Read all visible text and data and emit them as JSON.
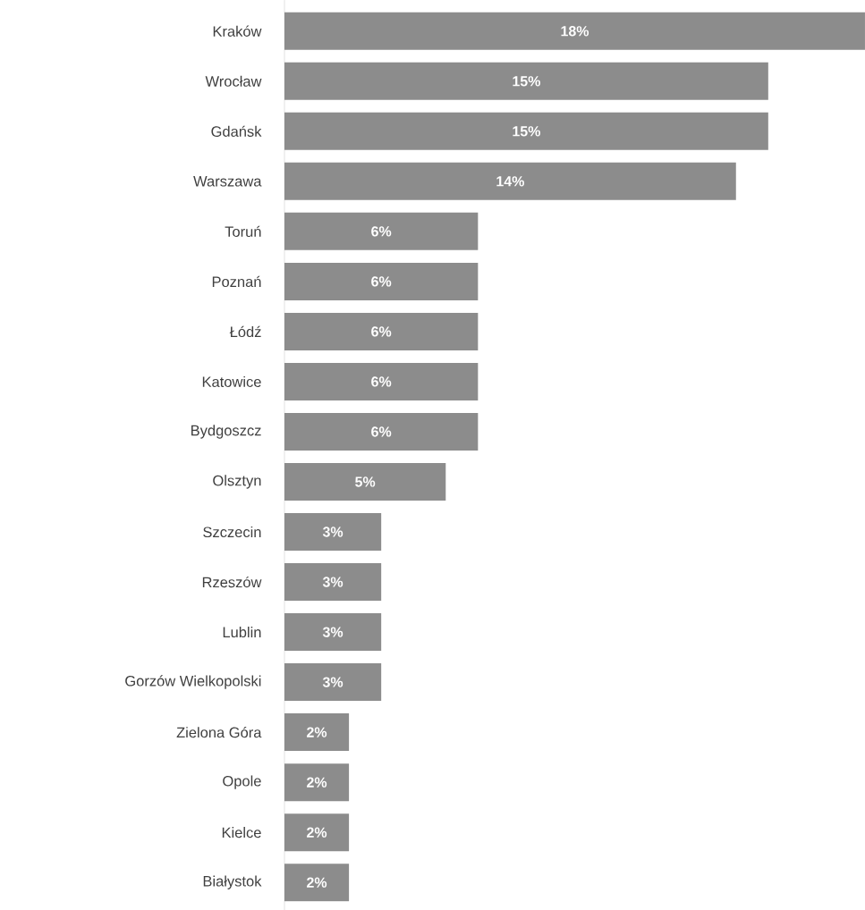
{
  "chart_data": {
    "type": "bar",
    "orientation": "horizontal",
    "categories": [
      "Kraków",
      "Wrocław",
      "Gdańsk",
      "Warszawa",
      "Toruń",
      "Poznań",
      "Łódź",
      "Katowice",
      "Bydgoszcz",
      "Olsztyn",
      "Szczecin",
      "Rzeszów",
      "Lublin",
      "Gorzów Wielkopolski",
      "Zielona Góra",
      "Opole",
      "Kielce",
      "Białystok"
    ],
    "values": [
      18,
      15,
      15,
      14,
      6,
      6,
      6,
      6,
      6,
      5,
      3,
      3,
      3,
      3,
      2,
      2,
      2,
      2
    ],
    "value_labels": [
      "18%",
      "15%",
      "15%",
      "14%",
      "6%",
      "6%",
      "6%",
      "6%",
      "6%",
      "5%",
      "3%",
      "3%",
      "3%",
      "3%",
      "2%",
      "2%",
      "2%",
      "2%"
    ],
    "color": "#8c8c8c"
  }
}
